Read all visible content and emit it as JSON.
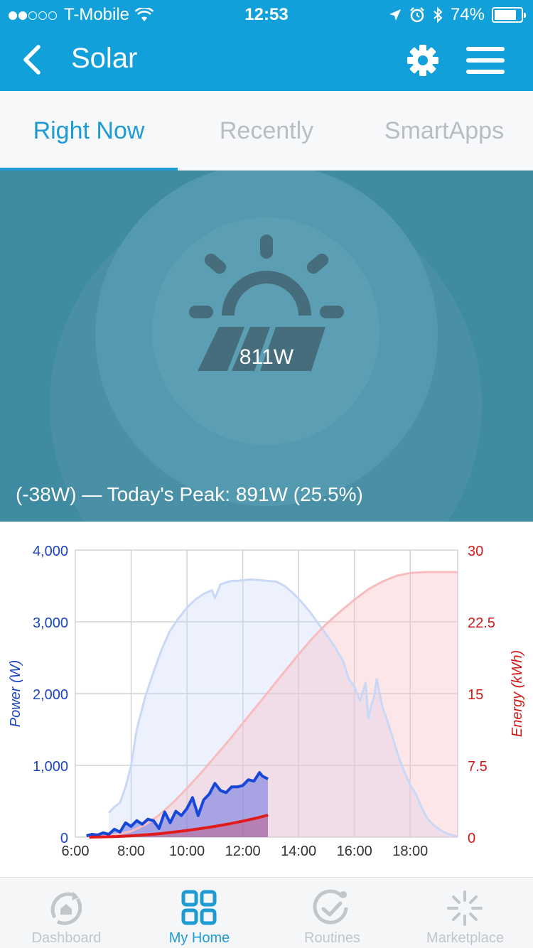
{
  "status_bar": {
    "carrier": "T-Mobile",
    "time": "12:53",
    "battery": "74%"
  },
  "nav": {
    "title": "Solar"
  },
  "tabs": [
    {
      "label": "Right Now",
      "active": true
    },
    {
      "label": "Recently",
      "active": false
    },
    {
      "label": "SmartApps",
      "active": false
    }
  ],
  "hero": {
    "current_power": "811W",
    "peak_text": "(-38W) — Today's Peak: 891W (25.5%)"
  },
  "colors": {
    "brand": "#12a0da",
    "power": "#1547d8",
    "energy": "#e01b1b"
  },
  "chart_data": {
    "type": "line",
    "x_labels": [
      "6:00",
      "8:00",
      "10:00",
      "12:00",
      "14:00",
      "16:00",
      "18:00"
    ],
    "x_range": [
      6,
      19.7
    ],
    "y_left": {
      "label": "Power (W)",
      "range": [
        0,
        4000
      ],
      "ticks": [
        "4,000",
        "3,000",
        "2,000",
        "1,000",
        "0"
      ]
    },
    "y_right": {
      "label": "Energy (kWh)",
      "range": [
        0,
        30
      ],
      "ticks": [
        "30",
        "22.5",
        "15",
        "7.5",
        "0"
      ]
    },
    "grid": true,
    "series": [
      {
        "axis": "left",
        "style": "forecast",
        "x": [
          7.2,
          7.4,
          7.6,
          7.8,
          8.0,
          8.2,
          8.5,
          8.8,
          9.1,
          9.4,
          9.7,
          10.0,
          10.3,
          10.6,
          10.9,
          11.0,
          11.2,
          11.4,
          11.6,
          11.8,
          12.0,
          12.3,
          12.6,
          12.9,
          13.2,
          13.5,
          13.8,
          14.1,
          14.4,
          14.7,
          15.0,
          15.3,
          15.6,
          15.8,
          16.0,
          16.2,
          16.4,
          16.5,
          16.6,
          16.7,
          16.8,
          17.0,
          17.2,
          17.4,
          17.6,
          17.8,
          18.0,
          18.2,
          18.4,
          18.6,
          18.8,
          19.0,
          19.2,
          19.4,
          19.6,
          19.7
        ],
        "values": [
          340,
          420,
          480,
          700,
          1000,
          1500,
          1950,
          2300,
          2620,
          2880,
          3050,
          3200,
          3310,
          3390,
          3440,
          3330,
          3520,
          3550,
          3570,
          3570,
          3580,
          3590,
          3580,
          3570,
          3560,
          3500,
          3400,
          3280,
          3140,
          2980,
          2820,
          2650,
          2450,
          2200,
          2100,
          1900,
          2150,
          1650,
          1830,
          1950,
          2200,
          1820,
          1600,
          1350,
          1100,
          900,
          730,
          600,
          420,
          270,
          180,
          120,
          70,
          40,
          20,
          10
        ]
      },
      {
        "axis": "right",
        "style": "forecast",
        "x": [
          6.5,
          7,
          7.5,
          8,
          8.5,
          9,
          9.5,
          10,
          10.5,
          11,
          11.5,
          12,
          12.5,
          13,
          13.5,
          14,
          14.5,
          15,
          15.5,
          16,
          16.5,
          17,
          17.5,
          18,
          18.5,
          19,
          19.7
        ],
        "values": [
          0,
          0.1,
          0.3,
          0.6,
          1.3,
          2.3,
          3.6,
          5.1,
          6.7,
          8.4,
          10.1,
          11.9,
          13.7,
          15.5,
          17.3,
          19.1,
          20.8,
          22.3,
          23.6,
          24.8,
          25.9,
          26.7,
          27.3,
          27.6,
          27.7,
          27.7,
          27.7
        ]
      },
      {
        "axis": "left",
        "style": "actual",
        "x": [
          6.4,
          6.6,
          6.8,
          7.0,
          7.2,
          7.4,
          7.6,
          7.8,
          8.0,
          8.2,
          8.4,
          8.6,
          8.8,
          9.0,
          9.2,
          9.4,
          9.6,
          9.8,
          10.0,
          10.2,
          10.4,
          10.6,
          10.8,
          11.0,
          11.2,
          11.4,
          11.6,
          11.8,
          12.0,
          12.2,
          12.4,
          12.6,
          12.7,
          12.9
        ],
        "values": [
          20,
          40,
          30,
          60,
          40,
          110,
          70,
          200,
          150,
          230,
          180,
          250,
          230,
          120,
          350,
          200,
          360,
          300,
          400,
          550,
          300,
          520,
          600,
          750,
          650,
          620,
          700,
          700,
          720,
          800,
          780,
          900,
          850,
          811
        ]
      },
      {
        "axis": "right",
        "style": "actual",
        "x": [
          6.5,
          7,
          7.5,
          8,
          8.5,
          9,
          9.5,
          10,
          10.5,
          11,
          11.5,
          12,
          12.5,
          12.9
        ],
        "values": [
          0,
          0.03,
          0.07,
          0.14,
          0.24,
          0.36,
          0.52,
          0.7,
          0.9,
          1.12,
          1.38,
          1.68,
          2.0,
          2.3
        ]
      }
    ]
  },
  "bottom_tabs": [
    {
      "label": "Dashboard",
      "icon": "dashboard-icon",
      "active": false
    },
    {
      "label": "My Home",
      "icon": "grid-icon",
      "active": true
    },
    {
      "label": "Routines",
      "icon": "routines-icon",
      "active": false
    },
    {
      "label": "Marketplace",
      "icon": "marketplace-icon",
      "active": false
    }
  ]
}
